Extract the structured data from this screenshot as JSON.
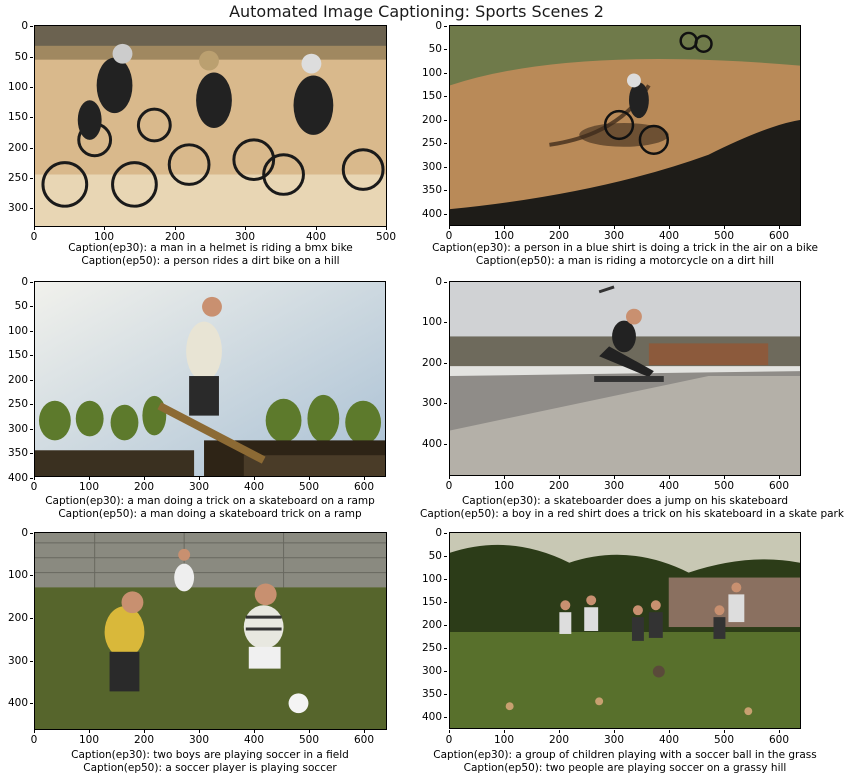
{
  "figure": {
    "title": "Automated Image Captioning: Sports Scenes 2"
  },
  "panels": [
    {
      "scene": "bmx-riders",
      "yticks": [
        "0",
        "50",
        "100",
        "150",
        "200",
        "250",
        "300"
      ],
      "xticks": [
        "0",
        "100",
        "200",
        "300",
        "400",
        "500"
      ],
      "caption_ep30": "Caption(ep30): a man in a helmet is riding a bmx bike",
      "caption_ep50": "Caption(ep50): a person rides a dirt bike on a hill"
    },
    {
      "scene": "bmx-jump",
      "yticks": [
        "0",
        "50",
        "100",
        "150",
        "200",
        "250",
        "300",
        "350",
        "400"
      ],
      "xticks": [
        "0",
        "100",
        "200",
        "300",
        "400",
        "500",
        "600"
      ],
      "caption_ep30": "Caption(ep30): a person in a blue shirt is doing a trick in the air on a bike",
      "caption_ep50": "Caption(ep50): a man is riding a motorcycle on a dirt hill"
    },
    {
      "scene": "skateboard-ramp",
      "yticks": [
        "0",
        "50",
        "100",
        "150",
        "200",
        "250",
        "300",
        "350",
        "400"
      ],
      "xticks": [
        "0",
        "100",
        "200",
        "300",
        "400",
        "500",
        "600"
      ],
      "caption_ep30": "Caption(ep30): a man doing a trick on a skateboard on a ramp",
      "caption_ep50": "Caption(ep50): a man doing a skateboard trick on a ramp"
    },
    {
      "scene": "skateboard-jump",
      "yticks": [
        "0",
        "100",
        "200",
        "300",
        "400"
      ],
      "xticks": [
        "0",
        "100",
        "200",
        "300",
        "400",
        "500",
        "600"
      ],
      "caption_ep30": "Caption(ep30): a skateboarder does a jump on his skateboard",
      "caption_ep50": "Caption(ep50): a boy in a red shirt does a trick on his skateboard in a skate park"
    },
    {
      "scene": "soccer-boys",
      "yticks": [
        "0",
        "100",
        "200",
        "300",
        "400"
      ],
      "xticks": [
        "0",
        "100",
        "200",
        "300",
        "400",
        "500",
        "600"
      ],
      "caption_ep30": "Caption(ep30): two boys are playing soccer in a field",
      "caption_ep50": "Caption(ep50): a soccer player is playing soccer"
    },
    {
      "scene": "soccer-children",
      "yticks": [
        "0",
        "50",
        "100",
        "150",
        "200",
        "250",
        "300",
        "350",
        "400"
      ],
      "xticks": [
        "0",
        "100",
        "200",
        "300",
        "400",
        "500",
        "600"
      ],
      "caption_ep30": "Caption(ep30): a group of children playing with a soccer ball in the grass",
      "caption_ep50": "Caption(ep50): two people are playing soccer on a grassy hill"
    }
  ]
}
